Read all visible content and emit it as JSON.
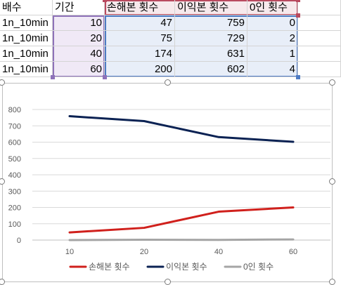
{
  "sheet": {
    "headers": [
      "배수",
      "기간",
      "손해본 횟수",
      "이익본 횟수",
      "0인 횟수",
      ""
    ],
    "rows": [
      [
        "1n_10min",
        "10",
        "47",
        "759",
        "0"
      ],
      [
        "1n_10min",
        "20",
        "75",
        "729",
        "2"
      ],
      [
        "1n_10min",
        "40",
        "174",
        "631",
        "1"
      ],
      [
        "1n_10min",
        "60",
        "200",
        "602",
        "4"
      ]
    ]
  },
  "chart_data": {
    "type": "line",
    "categories": [
      "10",
      "20",
      "40",
      "60"
    ],
    "series": [
      {
        "name": "손해본 횟수",
        "values": [
          47,
          75,
          174,
          200
        ],
        "color": "#d0201c"
      },
      {
        "name": "이익본 횟수",
        "values": [
          759,
          729,
          631,
          602
        ],
        "color": "#0b2253"
      },
      {
        "name": "0인 횟수",
        "values": [
          0,
          2,
          1,
          4
        ],
        "color": "#a5a5a5"
      }
    ],
    "yticks": [
      "0",
      "100",
      "200",
      "300",
      "400",
      "500",
      "600",
      "700",
      "800"
    ],
    "ylim": [
      0,
      800
    ],
    "grid": true,
    "legend_position": "bottom",
    "title": "",
    "xlabel": "",
    "ylabel": ""
  }
}
